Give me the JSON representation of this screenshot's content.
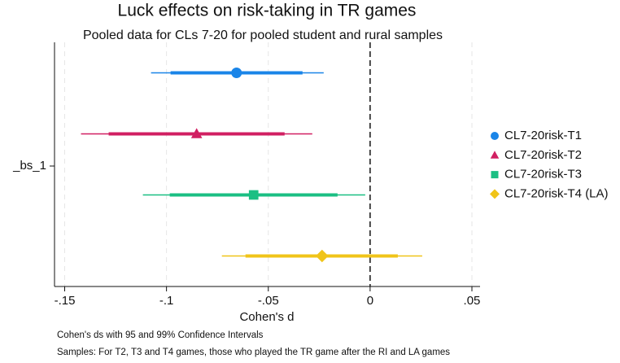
{
  "chart_data": {
    "type": "coefplot",
    "title": "Luck effects on risk-taking in TR games",
    "subtitle": "Pooled data for CLs 7-20 for pooled student and rural samples",
    "x_label": "Cohen's d",
    "categories": [
      "_bs_1"
    ],
    "notes": [
      "Cohen's ds with 95 and 99% Confidence Intervals",
      "Samples: For T2, T3 and T4 games, those who played the TR game after the RI and LA games"
    ],
    "xlim": [
      -0.155,
      0.054
    ],
    "xticks": [
      {
        "value": -0.15,
        "label": "-.15"
      },
      {
        "value": -0.1,
        "label": "-.1"
      },
      {
        "value": -0.05,
        "label": "-.05"
      },
      0,
      {
        "value": 0.05,
        "label": ".05"
      }
    ],
    "xline": 0,
    "grid": true,
    "legend": "right",
    "series": [
      {
        "name": "CL7-20risk-T1",
        "color": "#1a85e8",
        "marker": "circle",
        "values": [
          -0.0656
        ],
        "ci95": [
          -0.098,
          -0.0332
        ],
        "ci99": [
          -0.1076,
          -0.0228
        ]
      },
      {
        "name": "CL7-20risk-T2",
        "color": "#d11f62",
        "marker": "triangle",
        "values": [
          -0.0852
        ],
        "ci95": [
          -0.1284,
          -0.042
        ],
        "ci99": [
          -0.142,
          -0.0284
        ]
      },
      {
        "name": "CL7-20risk-T3",
        "color": "#1bbf83",
        "marker": "square",
        "values": [
          -0.0572
        ],
        "ci95": [
          -0.0984,
          -0.016
        ],
        "ci99": [
          -0.1116,
          -0.0024
        ]
      },
      {
        "name": "CL7-20risk-T4 (LA)",
        "color": "#f0c419",
        "marker": "diamond",
        "values": [
          -0.0236
        ],
        "ci95": [
          -0.0612,
          0.0136
        ],
        "ci99": [
          -0.0728,
          0.0256
        ]
      }
    ]
  }
}
